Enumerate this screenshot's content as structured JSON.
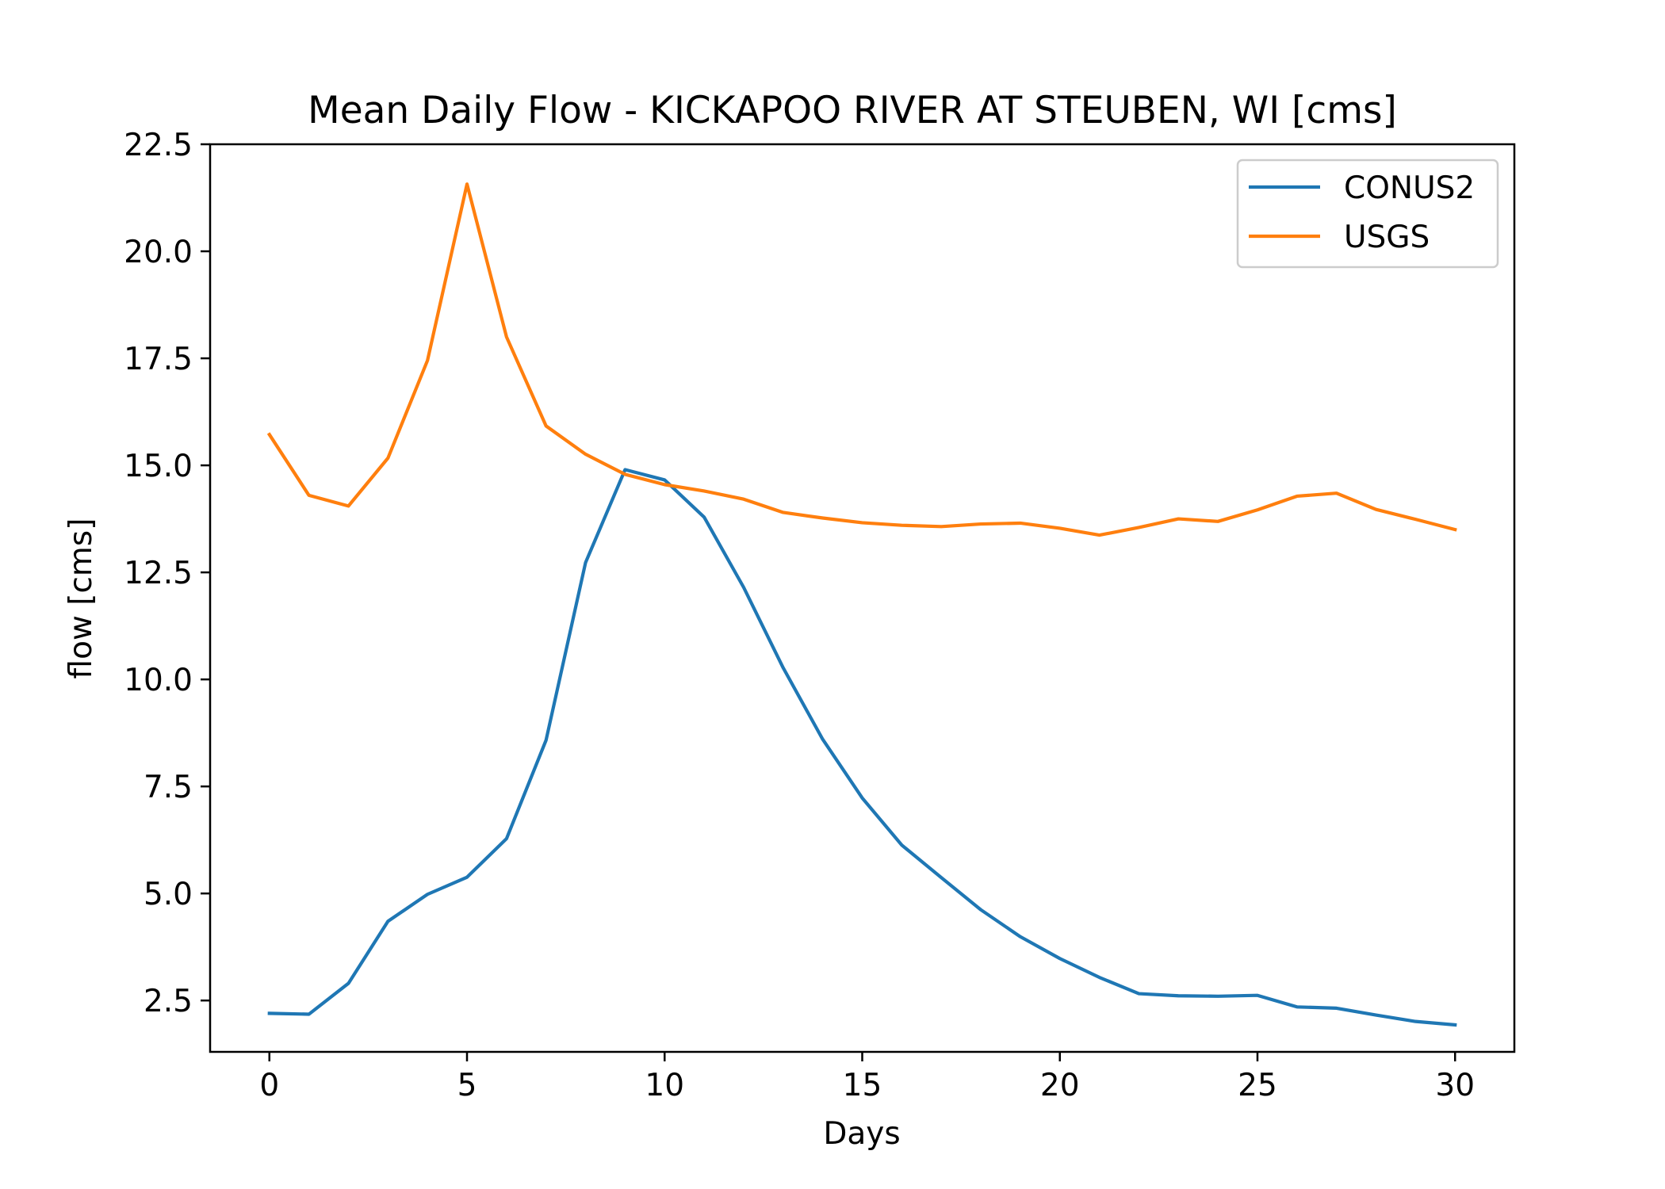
{
  "chart_data": {
    "type": "line",
    "title": "Mean Daily Flow - KICKAPOO RIVER AT STEUBEN, WI [cms]",
    "xlabel": "Days",
    "ylabel": "flow [cms]",
    "xlim": [
      -1.5,
      31.5
    ],
    "ylim": [
      1.3,
      22.5
    ],
    "x_ticks": [
      0,
      5,
      10,
      15,
      20,
      25,
      30
    ],
    "x_tick_labels": [
      "0",
      "5",
      "10",
      "15",
      "20",
      "25",
      "30"
    ],
    "y_ticks": [
      2.5,
      5.0,
      7.5,
      10.0,
      12.5,
      15.0,
      17.5,
      20.0,
      22.5
    ],
    "y_tick_labels": [
      "2.5",
      "5.0",
      "7.5",
      "10.0",
      "12.5",
      "15.0",
      "17.5",
      "20.0",
      "22.5"
    ],
    "grid": false,
    "legend_position": "top-right",
    "x": [
      0,
      1,
      2,
      3,
      4,
      5,
      6,
      7,
      8,
      9,
      10,
      11,
      12,
      13,
      14,
      15,
      16,
      17,
      18,
      19,
      20,
      21,
      22,
      23,
      24,
      25,
      26,
      27,
      28,
      29,
      30
    ],
    "series": [
      {
        "name": "CONUS2",
        "color": "#1f77b4",
        "values": [
          2.2,
          2.18,
          2.9,
          4.35,
          4.98,
          5.38,
          6.28,
          8.58,
          12.73,
          14.9,
          14.66,
          13.79,
          12.15,
          10.27,
          8.6,
          7.23,
          6.13,
          5.37,
          4.62,
          3.99,
          3.48,
          3.04,
          2.66,
          2.61,
          2.6,
          2.62,
          2.35,
          2.32,
          2.16,
          2.01,
          1.93
        ]
      },
      {
        "name": "USGS",
        "color": "#ff7f0e",
        "values": [
          15.72,
          14.3,
          14.05,
          15.17,
          17.45,
          21.57,
          18.0,
          15.92,
          15.26,
          14.79,
          14.55,
          14.4,
          14.21,
          13.9,
          13.77,
          13.66,
          13.6,
          13.57,
          13.63,
          13.65,
          13.53,
          13.37,
          13.55,
          13.75,
          13.69,
          13.96,
          14.28,
          14.35,
          13.97,
          13.74,
          13.5
        ]
      }
    ]
  }
}
